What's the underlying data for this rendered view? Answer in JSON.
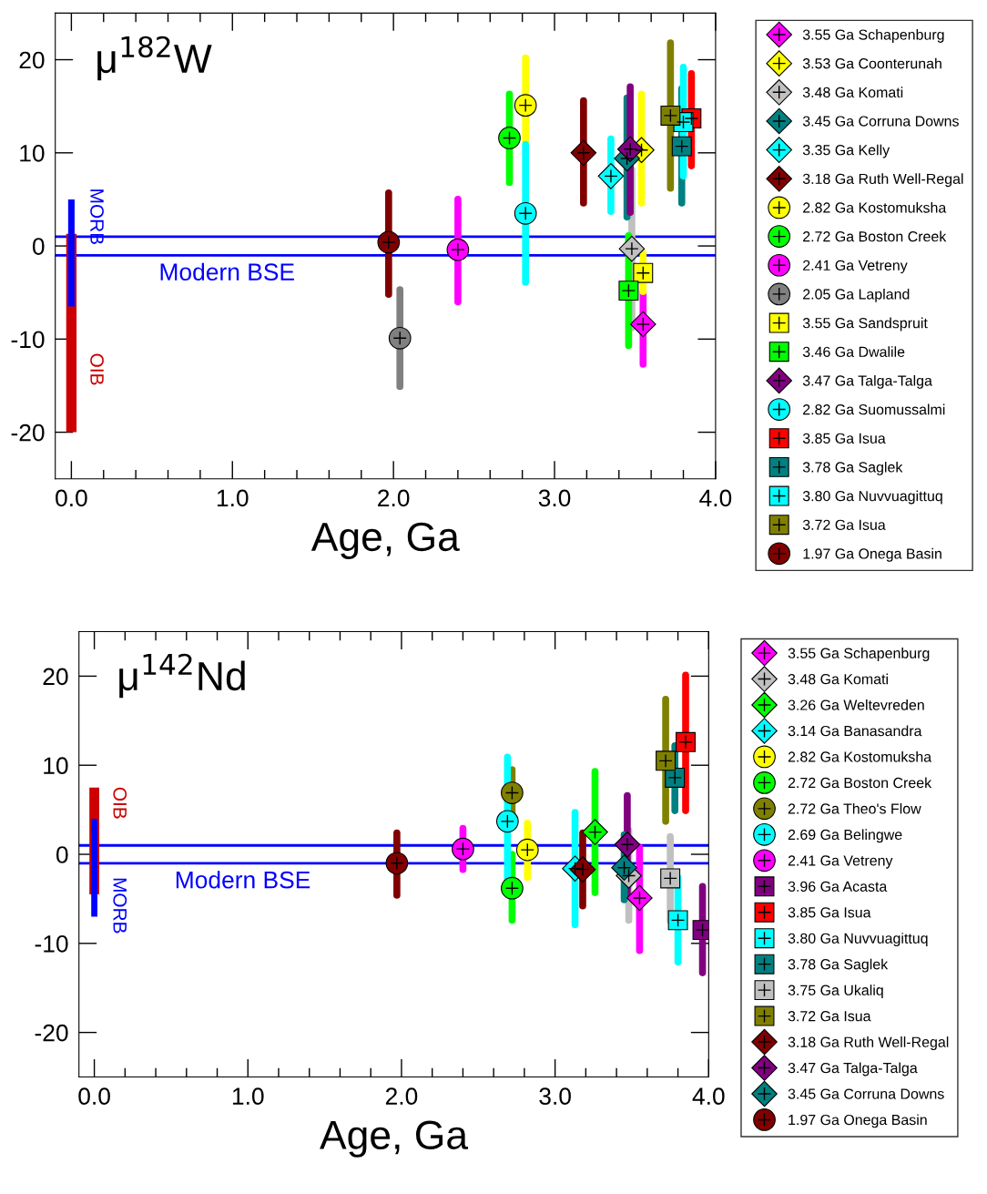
{
  "chart_data": [
    {
      "type": "scatter",
      "title": "μ$^{182}$W",
      "xlabel": "Age, Ga",
      "xlim": [
        -0.1,
        4.0
      ],
      "xticks": [
        {
          "value": 0,
          "label": "0.0"
        },
        {
          "value": 1,
          "label": "1.0"
        },
        {
          "value": 2,
          "label": "2.0"
        },
        {
          "value": 3,
          "label": "3.0"
        },
        {
          "value": 4,
          "label": "4.0"
        }
      ],
      "ylim": [
        -25,
        25
      ],
      "yticks": [
        -20,
        -10,
        0,
        10,
        20
      ],
      "legend": "right",
      "ref_lines": [
        {
          "axis": "y",
          "value": 1,
          "color": "#0000ff"
        },
        {
          "axis": "y",
          "value": -1,
          "color": "#0000ff",
          "label": "Modern BSE"
        }
      ],
      "series": [
        {
          "type": "bar",
          "name": "OIB",
          "color": "#cc0000",
          "x": [
            0
          ],
          "base": [
            -20
          ],
          "values": [
            21.3
          ]
        },
        {
          "type": "bar",
          "name": "MORB",
          "color": "#0000ff",
          "x": [
            0
          ],
          "base": [
            -6.5
          ],
          "values": [
            11.5
          ]
        },
        {
          "name": "3.55 Ga Schapenburg",
          "color": "#ff00ff",
          "marker": "diamond",
          "x": [
            3.55
          ],
          "values": [
            -8.4
          ],
          "errors": [
            [
              -12.7,
              -4.9
            ]
          ]
        },
        {
          "name": "3.53 Ga Coonterunah",
          "color": "#ffff00",
          "marker": "diamond",
          "x": [
            3.54
          ],
          "values": [
            10.3
          ],
          "errors": [
            [
              4.6,
              16.3
            ]
          ]
        },
        {
          "name": "3.48 Ga Komati",
          "color": "#c0c0c0",
          "marker": "diamond",
          "x": [
            3.48
          ],
          "values": [
            -0.3
          ],
          "errors": [
            [
              -8.8,
              8.2
            ]
          ]
        },
        {
          "name": "3.45 Ga Corruna Downs",
          "color": "#008080",
          "marker": "diamond",
          "x": [
            3.45
          ],
          "values": [
            9.4
          ],
          "errors": [
            [
              3.1,
              15.9
            ]
          ]
        },
        {
          "name": "3.35 Ga Kelly",
          "color": "#00ffff",
          "marker": "diamond",
          "x": [
            3.35
          ],
          "values": [
            7.5
          ],
          "errors": [
            [
              3.7,
              11.5
            ]
          ]
        },
        {
          "name": "3.18 Ga Ruth Well-Regal",
          "color": "#800000",
          "marker": "diamond",
          "x": [
            3.18
          ],
          "values": [
            10.0
          ],
          "errors": [
            [
              4.6,
              15.6
            ]
          ]
        },
        {
          "name": "2.82 Ga Kostomuksha",
          "color": "#ffff00",
          "marker": "circle",
          "x": [
            2.82
          ],
          "values": [
            15.1
          ],
          "errors": [
            [
              11.2,
              20.2
            ]
          ]
        },
        {
          "name": "2.72 Ga Boston Creek",
          "color": "#00ff00",
          "marker": "circle",
          "x": [
            2.72
          ],
          "values": [
            11.6
          ],
          "errors": [
            [
              6.8,
              16.3
            ]
          ]
        },
        {
          "name": "2.41 Ga Vetreny",
          "color": "#ff00ff",
          "marker": "circle",
          "x": [
            2.4
          ],
          "values": [
            -0.4
          ],
          "errors": [
            [
              -6.0,
              5.0
            ]
          ]
        },
        {
          "name": "2.05 Ga Lapland",
          "color": "#808080",
          "marker": "circle",
          "x": [
            2.04
          ],
          "values": [
            -9.9
          ],
          "errors": [
            [
              -15.1,
              -4.7
            ]
          ]
        },
        {
          "name": "3.55 Ga Sandspruit",
          "color": "#ffff00",
          "marker": "square",
          "x": [
            3.55
          ],
          "values": [
            -2.9
          ],
          "errors": [
            [
              -4.9,
              -0.8
            ]
          ]
        },
        {
          "name": "3.46 Ga Dwalile",
          "color": "#00ff00",
          "marker": "square",
          "x": [
            3.46
          ],
          "values": [
            -4.8
          ],
          "errors": [
            [
              -10.7,
              1.1
            ]
          ]
        },
        {
          "name": "3.47 Ga Talga-Talga",
          "color": "#800080",
          "marker": "diamond",
          "x": [
            3.47
          ],
          "values": [
            10.4
          ],
          "errors": [
            [
              3.6,
              17.1
            ]
          ]
        },
        {
          "name": "2.82 Ga Suomussalmi",
          "color": "#00ffff",
          "marker": "circle",
          "x": [
            2.82
          ],
          "values": [
            3.5
          ],
          "errors": [
            [
              -3.9,
              10.9
            ]
          ]
        },
        {
          "name": "3.85 Ga Isua",
          "color": "#ff0000",
          "marker": "square",
          "x": [
            3.85
          ],
          "values": [
            13.7
          ],
          "errors": [
            [
              8.6,
              18.5
            ]
          ]
        },
        {
          "name": "3.78 Ga Saglek",
          "color": "#008080",
          "marker": "square",
          "x": [
            3.79
          ],
          "values": [
            10.7
          ],
          "errors": [
            [
              4.6,
              16.9
            ]
          ]
        },
        {
          "name": "3.80 Ga Nuvvuagittuq",
          "color": "#00ffff",
          "marker": "square",
          "x": [
            3.8
          ],
          "values": [
            13.3
          ],
          "errors": [
            [
              7.5,
              19.2
            ]
          ]
        },
        {
          "name": "3.72 Ga Isua",
          "color": "#808000",
          "marker": "square",
          "x": [
            3.72
          ],
          "values": [
            14.0
          ],
          "errors": [
            [
              6.2,
              21.8
            ]
          ]
        },
        {
          "name": "1.97 Ga Onega Basin",
          "color": "#800000",
          "marker": "circle",
          "x": [
            1.97
          ],
          "values": [
            0.4
          ],
          "errors": [
            [
              -5.2,
              5.7
            ]
          ]
        }
      ]
    },
    {
      "type": "scatter",
      "title": "μ$^{142}$Nd",
      "xlabel": "Age, Ga",
      "xlim": [
        -0.1,
        4.0
      ],
      "xticks": [
        {
          "value": 0,
          "label": "0.0"
        },
        {
          "value": 1,
          "label": "1.0"
        },
        {
          "value": 2,
          "label": "2.0"
        },
        {
          "value": 3,
          "label": "3.0"
        },
        {
          "value": 4,
          "label": "4.0"
        }
      ],
      "ylim": [
        -25,
        25
      ],
      "yticks": [
        -20,
        -10,
        0,
        10,
        20
      ],
      "legend": "right",
      "ref_lines": [
        {
          "axis": "y",
          "value": 1,
          "color": "#0000ff"
        },
        {
          "axis": "y",
          "value": -1,
          "color": "#0000ff",
          "label": "Modern BSE"
        }
      ],
      "series": [
        {
          "type": "bar",
          "name": "OIB",
          "color": "#cc0000",
          "x": [
            0
          ],
          "base": [
            -4.5
          ],
          "values": [
            12
          ]
        },
        {
          "type": "bar",
          "name": "MORB",
          "color": "#0000ff",
          "x": [
            0
          ],
          "base": [
            -7
          ],
          "values": [
            11
          ]
        },
        {
          "name": "3.55 Ga Schapenburg",
          "color": "#ff00ff",
          "marker": "diamond",
          "x": [
            3.55
          ],
          "values": [
            -4.9
          ],
          "errors": [
            [
              -10.8,
              0.8
            ]
          ]
        },
        {
          "name": "3.48 Ga Komati",
          "color": "#c0c0c0",
          "marker": "diamond",
          "x": [
            3.48
          ],
          "values": [
            -2.4
          ],
          "errors": [
            [
              -7.4,
              2.7
            ]
          ]
        },
        {
          "name": "3.26 Ga Weltevreden",
          "color": "#00ff00",
          "marker": "diamond",
          "x": [
            3.26
          ],
          "values": [
            2.5
          ],
          "errors": [
            [
              -4.3,
              9.3
            ]
          ]
        },
        {
          "name": "3.14 Ga Banasandra",
          "color": "#00ffff",
          "marker": "diamond",
          "x": [
            3.13
          ],
          "values": [
            -1.6
          ],
          "errors": [
            [
              -7.9,
              4.7
            ]
          ]
        },
        {
          "name": "2.82 Ga Kostomuksha",
          "color": "#ffff00",
          "marker": "circle",
          "x": [
            2.82
          ],
          "values": [
            0.5
          ],
          "errors": [
            [
              -2.6,
              3.5
            ]
          ]
        },
        {
          "name": "2.72 Ga Boston Creek",
          "color": "#00ff00",
          "marker": "circle",
          "x": [
            2.72
          ],
          "values": [
            -3.8
          ],
          "errors": [
            [
              -7.4,
              0.0
            ]
          ]
        },
        {
          "name": "2.72 Ga Theo's Flow",
          "color": "#808000",
          "marker": "circle",
          "x": [
            2.72
          ],
          "values": [
            6.9
          ],
          "errors": [
            [
              4.3,
              9.5
            ]
          ]
        },
        {
          "name": "2.69 Ga Belingwe",
          "color": "#00ffff",
          "marker": "circle",
          "x": [
            2.69
          ],
          "values": [
            3.7
          ],
          "errors": [
            [
              -3.6,
              10.9
            ]
          ]
        },
        {
          "name": "2.41 Ga Vetreny",
          "color": "#ff00ff",
          "marker": "circle",
          "x": [
            2.4
          ],
          "values": [
            0.6
          ],
          "errors": [
            [
              -1.7,
              2.9
            ]
          ]
        },
        {
          "name": "3.96 Ga Acasta",
          "color": "#800080",
          "marker": "square",
          "x": [
            3.96
          ],
          "values": [
            -8.5
          ],
          "errors": [
            [
              -13.3,
              -3.6
            ]
          ]
        },
        {
          "name": "3.85 Ga Isua",
          "color": "#ff0000",
          "marker": "square",
          "x": [
            3.85
          ],
          "values": [
            12.6
          ],
          "errors": [
            [
              4.9,
              20.1
            ]
          ]
        },
        {
          "name": "3.80 Ga Nuvvuagittuq",
          "color": "#00ffff",
          "marker": "square",
          "x": [
            3.8
          ],
          "values": [
            -7.4
          ],
          "errors": [
            [
              -12.1,
              -2.6
            ]
          ]
        },
        {
          "name": "3.78 Ga Saglek",
          "color": "#008080",
          "marker": "square",
          "x": [
            3.78
          ],
          "values": [
            8.6
          ],
          "errors": [
            [
              4.9,
              12.2
            ]
          ]
        },
        {
          "name": "3.75 Ga Ukaliq",
          "color": "#c0c0c0",
          "marker": "square",
          "x": [
            3.75
          ],
          "values": [
            -2.7
          ],
          "errors": [
            [
              -7.5,
              2.0
            ]
          ]
        },
        {
          "name": "3.72 Ga Isua",
          "color": "#808000",
          "marker": "square",
          "x": [
            3.72
          ],
          "values": [
            10.5
          ],
          "errors": [
            [
              3.7,
              17.4
            ]
          ]
        },
        {
          "name": "3.18 Ga Ruth Well-Regal",
          "color": "#800000",
          "marker": "diamond",
          "x": [
            3.18
          ],
          "values": [
            -1.7
          ],
          "errors": [
            [
              -5.8,
              2.4
            ]
          ]
        },
        {
          "name": "3.47 Ga Talga-Talga",
          "color": "#800080",
          "marker": "diamond",
          "x": [
            3.47
          ],
          "values": [
            1.1
          ],
          "errors": [
            [
              -4.4,
              6.6
            ]
          ]
        },
        {
          "name": "3.45 Ga Corruna Downs",
          "color": "#008080",
          "marker": "diamond",
          "x": [
            3.45
          ],
          "values": [
            -1.5
          ],
          "errors": [
            [
              -5.1,
              2.2
            ]
          ]
        },
        {
          "name": "1.97 Ga Onega Basin",
          "color": "#800000",
          "marker": "circle",
          "x": [
            1.97
          ],
          "values": [
            -1.0
          ],
          "errors": [
            [
              -4.6,
              2.4
            ]
          ]
        }
      ]
    }
  ]
}
